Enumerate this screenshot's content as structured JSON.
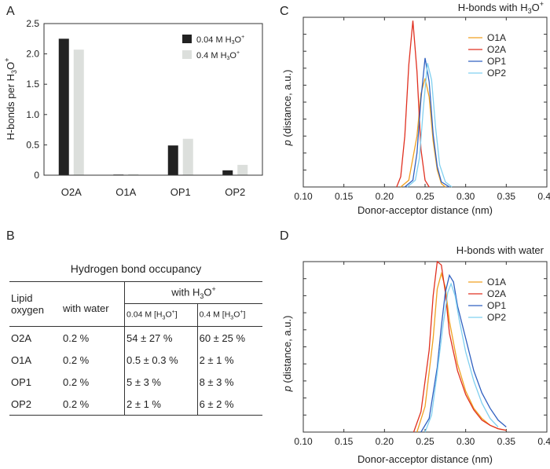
{
  "panels": {
    "a": "A",
    "b": "B",
    "c": "C",
    "d": "D"
  },
  "chart_data": [
    {
      "id": "A",
      "type": "bar",
      "title": "",
      "categories": [
        "O2A",
        "O1A",
        "OP1",
        "OP2"
      ],
      "series": [
        {
          "name": "0.04 M H3O+",
          "label_main": "0.04 M H",
          "label_sub": "3",
          "label_tail": "O",
          "label_sup": "+",
          "color": "#222222",
          "values": [
            2.25,
            0.01,
            0.49,
            0.08
          ]
        },
        {
          "name": "0.4 M H3O+",
          "label_main": "0.4 M H",
          "label_sub": "3",
          "label_tail": "O",
          "label_sup": "+",
          "color": "#dcdfdc",
          "values": [
            2.07,
            0.02,
            0.6,
            0.17
          ]
        }
      ],
      "ylabel": {
        "main": "H-bonds per H",
        "sub": "3",
        "tail": "O",
        "sup": "+"
      },
      "ylim": [
        0,
        2.5
      ],
      "yticks": [
        "0",
        "0.5",
        "1.0",
        "1.5",
        "2.0",
        "2.5"
      ],
      "legend": "top-right"
    },
    {
      "id": "C",
      "type": "line",
      "title": {
        "main": "H-bonds with H",
        "sub": "3",
        "tail": "O",
        "sup": "+"
      },
      "xlabel": "Donor-acceptor distance (nm)",
      "ylabel": {
        "italic": "p",
        "rest": " (distance, a.u.)"
      },
      "xlim": [
        0.1,
        0.4
      ],
      "xticks": [
        "0.10",
        "0.15",
        "0.20",
        "0.25",
        "0.30",
        "0.35",
        "0.40"
      ],
      "ylim": [
        0,
        1
      ],
      "legend": "top-right",
      "series": [
        {
          "name": "O1A",
          "color": "#f0a020",
          "x": [
            0.22,
            0.23,
            0.24,
            0.245,
            0.25,
            0.255,
            0.26,
            0.265,
            0.27,
            0.275
          ],
          "y": [
            0.0,
            0.04,
            0.3,
            0.55,
            0.64,
            0.53,
            0.27,
            0.1,
            0.02,
            0.0
          ]
        },
        {
          "name": "O2A",
          "color": "#e03020",
          "x": [
            0.215,
            0.22,
            0.225,
            0.23,
            0.235,
            0.24,
            0.245,
            0.25,
            0.255
          ],
          "y": [
            0.0,
            0.06,
            0.3,
            0.72,
            0.98,
            0.68,
            0.22,
            0.04,
            0.0
          ]
        },
        {
          "name": "OP1",
          "color": "#3060c0",
          "x": [
            0.225,
            0.235,
            0.24,
            0.245,
            0.25,
            0.255,
            0.26,
            0.265,
            0.27,
            0.28
          ],
          "y": [
            0.0,
            0.04,
            0.2,
            0.52,
            0.76,
            0.62,
            0.31,
            0.12,
            0.03,
            0.0
          ]
        },
        {
          "name": "OP2",
          "color": "#80d0f0",
          "x": [
            0.228,
            0.238,
            0.243,
            0.248,
            0.253,
            0.258,
            0.263,
            0.268,
            0.275,
            0.283
          ],
          "y": [
            0.0,
            0.04,
            0.17,
            0.47,
            0.73,
            0.63,
            0.35,
            0.13,
            0.03,
            0.0
          ]
        }
      ]
    },
    {
      "id": "D",
      "type": "line",
      "title": "H-bonds with water",
      "xlabel": "Donor-acceptor distance (nm)",
      "ylabel": {
        "italic": "p",
        "rest": " (distance, a.u.)"
      },
      "xlim": [
        0.1,
        0.4
      ],
      "xticks": [
        "0.10",
        "0.15",
        "0.20",
        "0.25",
        "0.30",
        "0.35",
        "0.40"
      ],
      "ylim": [
        0,
        1
      ],
      "legend": "top-right",
      "series": [
        {
          "name": "O1A",
          "color": "#f0a020",
          "x": [
            0.24,
            0.25,
            0.26,
            0.265,
            0.27,
            0.275,
            0.28,
            0.29,
            0.3,
            0.31,
            0.32,
            0.33,
            0.34,
            0.35
          ],
          "y": [
            0.0,
            0.15,
            0.55,
            0.84,
            0.93,
            0.85,
            0.65,
            0.4,
            0.24,
            0.14,
            0.08,
            0.04,
            0.02,
            0.01
          ]
        },
        {
          "name": "O2A",
          "color": "#e03020",
          "x": [
            0.236,
            0.245,
            0.255,
            0.26,
            0.265,
            0.27,
            0.275,
            0.28,
            0.29,
            0.3,
            0.31,
            0.32,
            0.33,
            0.34,
            0.35
          ],
          "y": [
            0.0,
            0.12,
            0.48,
            0.8,
            1.0,
            0.98,
            0.82,
            0.58,
            0.36,
            0.22,
            0.13,
            0.07,
            0.04,
            0.02,
            0.01
          ]
        },
        {
          "name": "OP1",
          "color": "#3060c0",
          "x": [
            0.245,
            0.255,
            0.265,
            0.27,
            0.275,
            0.28,
            0.285,
            0.29,
            0.3,
            0.31,
            0.32,
            0.33,
            0.34,
            0.35
          ],
          "y": [
            0.0,
            0.08,
            0.38,
            0.62,
            0.82,
            0.92,
            0.88,
            0.74,
            0.55,
            0.36,
            0.23,
            0.14,
            0.07,
            0.03
          ]
        },
        {
          "name": "OP2",
          "color": "#80d0f0",
          "x": [
            0.25,
            0.258,
            0.265,
            0.272,
            0.278,
            0.282,
            0.287,
            0.292,
            0.3,
            0.31,
            0.32,
            0.33,
            0.34
          ],
          "y": [
            0.0,
            0.1,
            0.35,
            0.62,
            0.82,
            0.87,
            0.8,
            0.66,
            0.47,
            0.3,
            0.17,
            0.08,
            0.03
          ]
        }
      ]
    }
  ],
  "table": {
    "title": "Hydrogen bond occupancy",
    "col_lipid": "Lipid oxygen",
    "col_water": "with water",
    "col_h3o_main": "with H",
    "col_h3o_sub": "3",
    "col_h3o_tail": "O",
    "col_h3o_sup": "+",
    "sub_004_prefix": "0.04 M [H",
    "sub_04_prefix": "0.4 M [H",
    "sub_sub": "3",
    "sub_tail": "O",
    "sub_sup": "+",
    "sub_close": "]",
    "rows": [
      {
        "oxygen": "O2A",
        "water": "0.2 %",
        "m004": "54 ± 27 %",
        "m04": "60 ± 25 %"
      },
      {
        "oxygen": "O1A",
        "water": "0.2 %",
        "m004": "0.5 ± 0.3 %",
        "m04": "2 ± 1 %"
      },
      {
        "oxygen": "OP1",
        "water": "0.2 %",
        "m004": "5 ± 3 %",
        "m04": "8 ± 3 %"
      },
      {
        "oxygen": "OP2",
        "water": "0.2 %",
        "m004": "2 ± 1 %",
        "m04": "6 ± 2 %"
      }
    ]
  }
}
